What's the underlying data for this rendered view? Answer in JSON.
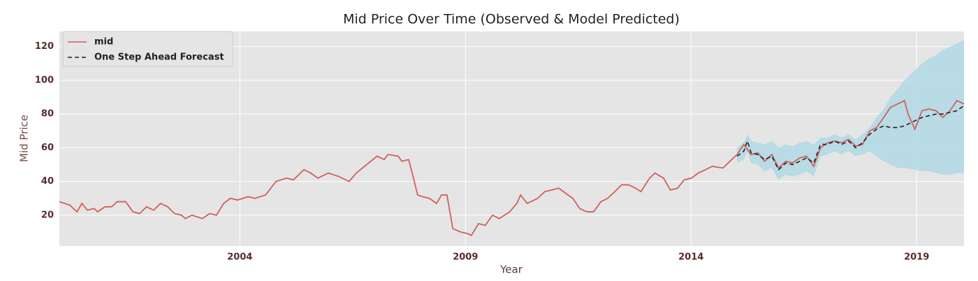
{
  "chart_data": {
    "type": "line",
    "title": "Mid Price Over Time (Observed & Model Predicted)",
    "xlabel": "Year",
    "ylabel": "Mid Price",
    "xlim": [
      2000,
      2020.05
    ],
    "ylim": [
      1.7,
      129
    ],
    "xticks": [
      2004,
      2009,
      2014,
      2019
    ],
    "yticks": [
      20,
      40,
      60,
      80,
      100,
      120
    ],
    "grid": true,
    "legend": "upper left",
    "series": [
      {
        "name": "mid",
        "color": "#d2605a",
        "style": "solid",
        "x": [
          2000,
          2000.23,
          2000.39,
          2000.5,
          2000.62,
          2000.77,
          2000.85,
          2001.01,
          2001.16,
          2001.28,
          2001.47,
          2001.63,
          2001.78,
          2001.93,
          2002.09,
          2002.24,
          2002.4,
          2002.55,
          2002.71,
          2002.79,
          2002.94,
          2003.17,
          2003.33,
          2003.48,
          2003.64,
          2003.79,
          2003.95,
          2004.18,
          2004.33,
          2004.57,
          2004.8,
          2005.03,
          2005.19,
          2005.42,
          2005.57,
          2005.73,
          2005.96,
          2006.19,
          2006.42,
          2006.58,
          2006.81,
          2007.04,
          2007.2,
          2007.28,
          2007.51,
          2007.59,
          2007.74,
          2007.82,
          2007.94,
          2008.05,
          2008.2,
          2008.36,
          2008.47,
          2008.59,
          2008.72,
          2008.9,
          2009.06,
          2009.13,
          2009.29,
          2009.44,
          2009.6,
          2009.75,
          2009.98,
          2010.14,
          2010.22,
          2010.37,
          2010.6,
          2010.76,
          2010.91,
          2011.07,
          2011.22,
          2011.38,
          2011.53,
          2011.69,
          2011.84,
          2012,
          2012.15,
          2012.31,
          2012.46,
          2012.62,
          2012.77,
          2012.89,
          2013.08,
          2013.2,
          2013.39,
          2013.54,
          2013.7,
          2013.85,
          2014.01,
          2014.16,
          2014.32,
          2014.47,
          2014.71,
          2014.86,
          2015.02,
          2015.17,
          2015.33,
          2015.48,
          2015.63,
          2015.79,
          2015.94,
          2016.1,
          2016.25,
          2016.41,
          2016.56,
          2016.72,
          2016.87,
          2017.03,
          2017.18,
          2017.34,
          2017.49,
          2017.65,
          2017.8,
          2017.96,
          2018.11,
          2018.27,
          2018.42,
          2018.58,
          2018.73,
          2018.81,
          2018.96,
          2019.12,
          2019.27,
          2019.43,
          2019.58,
          2019.74,
          2019.89,
          2020.05
        ],
        "values": [
          28,
          26,
          22,
          27,
          23,
          24,
          22,
          25,
          25,
          28,
          28,
          22,
          21,
          25,
          23,
          27,
          25,
          21,
          20,
          18,
          20,
          18,
          21,
          20,
          27,
          30,
          29,
          31,
          30,
          32,
          40,
          42,
          41,
          47,
          45,
          42,
          45,
          43,
          40,
          45,
          50,
          55,
          53,
          56,
          55,
          52,
          53,
          45,
          32,
          31,
          30,
          27,
          32,
          32,
          12,
          10,
          9,
          8,
          15,
          14,
          20,
          18,
          22,
          27,
          32,
          27,
          30,
          34,
          35,
          36,
          33,
          30,
          24,
          22,
          22,
          28,
          30,
          34,
          38,
          38,
          36,
          34,
          42,
          45,
          42,
          35,
          36,
          41,
          42,
          45,
          47,
          49,
          48,
          52,
          56,
          62,
          56,
          57,
          52,
          56,
          48,
          52,
          51,
          54,
          55,
          49,
          60,
          63,
          64,
          63,
          65,
          61,
          62,
          70,
          72,
          78,
          84,
          86,
          88,
          80,
          71,
          82,
          83,
          82,
          78,
          82,
          88,
          86
        ]
      },
      {
        "name": "One Step Ahead Forecast",
        "color": "#222222",
        "style": "dashed",
        "x": [
          2015.02,
          2015.17,
          2015.25,
          2015.33,
          2015.48,
          2015.63,
          2015.79,
          2015.94,
          2016.1,
          2016.25,
          2016.41,
          2016.56,
          2016.72,
          2016.87,
          2017.03,
          2017.18,
          2017.34,
          2017.49,
          2017.65,
          2017.8,
          2017.96,
          2018.11,
          2018.27,
          2018.42,
          2018.58,
          2018.73,
          2018.96,
          2019.12,
          2019.27,
          2019.43,
          2019.58,
          2019.74,
          2019.89,
          2020.05
        ],
        "values": [
          55,
          58,
          64,
          57,
          56,
          53,
          55,
          47,
          51,
          50,
          52,
          54,
          51,
          62,
          62,
          64,
          62,
          64,
          60,
          63,
          68,
          71,
          73,
          72,
          72,
          73,
          76,
          78,
          79,
          80,
          80,
          81,
          82,
          85
        ]
      }
    ],
    "band": {
      "color": "#add8e6",
      "x": [
        2015.02,
        2015.17,
        2015.25,
        2015.33,
        2015.48,
        2015.63,
        2015.79,
        2015.94,
        2016.1,
        2016.25,
        2016.41,
        2016.56,
        2016.72,
        2016.87,
        2017.03,
        2017.18,
        2017.34,
        2017.49,
        2017.65,
        2017.8,
        2017.96,
        2018.11,
        2018.27,
        2018.42,
        2018.58,
        2018.73,
        2018.96,
        2019.12,
        2019.27,
        2019.43,
        2019.58,
        2019.74,
        2019.89,
        2020.05
      ],
      "upper": [
        60,
        63,
        68,
        64,
        63,
        62,
        64,
        60,
        62,
        61,
        63,
        64,
        62,
        66,
        66,
        68,
        66,
        68,
        65,
        68,
        72,
        78,
        83,
        90,
        95,
        100,
        106,
        110,
        113,
        115,
        118,
        120,
        122,
        124
      ],
      "lower": [
        51,
        53,
        58,
        51,
        50,
        46,
        48,
        41,
        44,
        43,
        44,
        46,
        43,
        55,
        56,
        58,
        56,
        58,
        55,
        56,
        58,
        55,
        52,
        50,
        48,
        48,
        47,
        46,
        46,
        45,
        44,
        44,
        45,
        45
      ]
    }
  }
}
